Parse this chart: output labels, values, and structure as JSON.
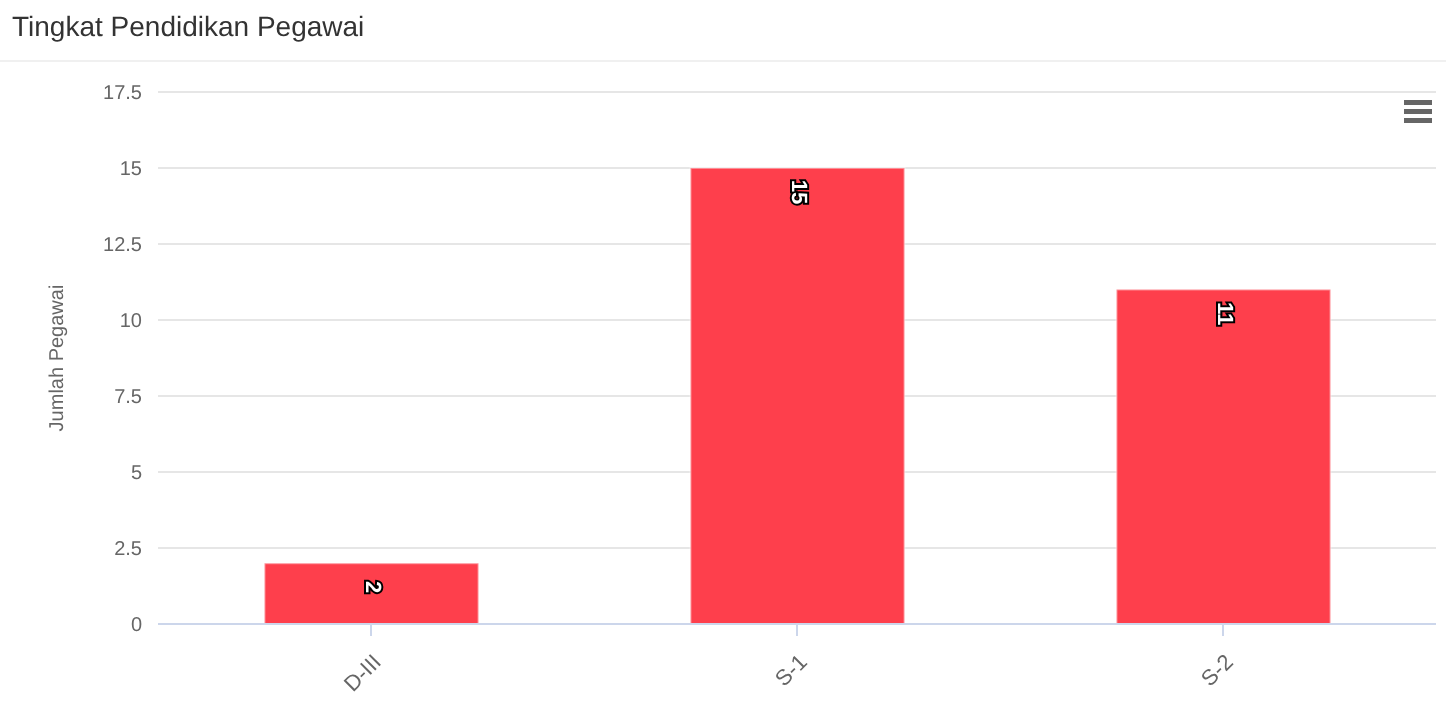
{
  "chart_data": {
    "type": "bar",
    "title": "Tingkat Pendidikan Pegawai",
    "ylabel": "Jumlah Pegawai",
    "categories": [
      "D-III",
      "S-1",
      "S-2"
    ],
    "values": [
      2,
      15,
      11
    ],
    "color": "#fe3f4c",
    "ylim": [
      0,
      17.5
    ],
    "yticks": [
      0,
      2.5,
      5,
      7.5,
      10,
      12.5,
      15,
      17.5
    ],
    "grid": "y",
    "data_labels": true
  }
}
